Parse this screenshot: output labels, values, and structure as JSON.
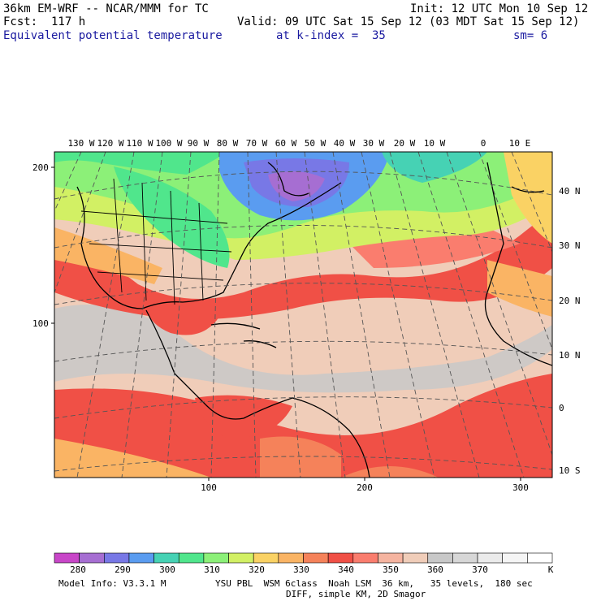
{
  "header": {
    "model_title": "36km EM-WRF -- NCAR/MMM for TC",
    "init": "Init: 12 UTC Mon 10 Sep 12",
    "forecast": "Fcst:  117 h",
    "valid": "Valid: 09 UTC Sat 15 Sep 12 (03 MDT Sat 15 Sep 12)",
    "field": "Equivalent potential temperature",
    "level": "at k-index =  35",
    "smoothing": "sm= 6"
  },
  "map": {
    "top_lon_labels": [
      "130 W",
      "120 W",
      "110 W",
      "100 W",
      "90 W",
      "80 W",
      "70 W",
      "60 W",
      "50 W",
      "40 W",
      "30 W",
      "20 W",
      "10 W",
      "0",
      "10 E"
    ],
    "right_lat_labels": [
      "40 N",
      "30 N",
      "20 N",
      "10 N",
      "0",
      "10 S"
    ],
    "left_grid_labels": [
      "200",
      "100"
    ],
    "bottom_grid_labels": [
      "100",
      "200",
      "300"
    ]
  },
  "colorbar": {
    "labels": [
      "280",
      "290",
      "300",
      "310",
      "320",
      "330",
      "340",
      "350",
      "360",
      "370"
    ],
    "unit": "K",
    "colors": [
      "#c846c8",
      "#a66ed2",
      "#7878e6",
      "#5a9cf0",
      "#46d2b4",
      "#50e68c",
      "#8cf078",
      "#d2f064",
      "#fad264",
      "#fab464",
      "#f5825a",
      "#f05046",
      "#fa7d6e",
      "#f5b4a0",
      "#f0cdb9",
      "#c8c8c8",
      "#d7d7d7",
      "#ebebeb",
      "#f5f5f5",
      "#ffffff"
    ]
  },
  "footer": {
    "model_info": "Model Info: V3.3.1 M",
    "physics": "YSU PBL  WSM 6class  Noah LSM  36 km,   35 levels,  180 sec",
    "diff": "DIFF, simple KM, 2D Smagor"
  }
}
